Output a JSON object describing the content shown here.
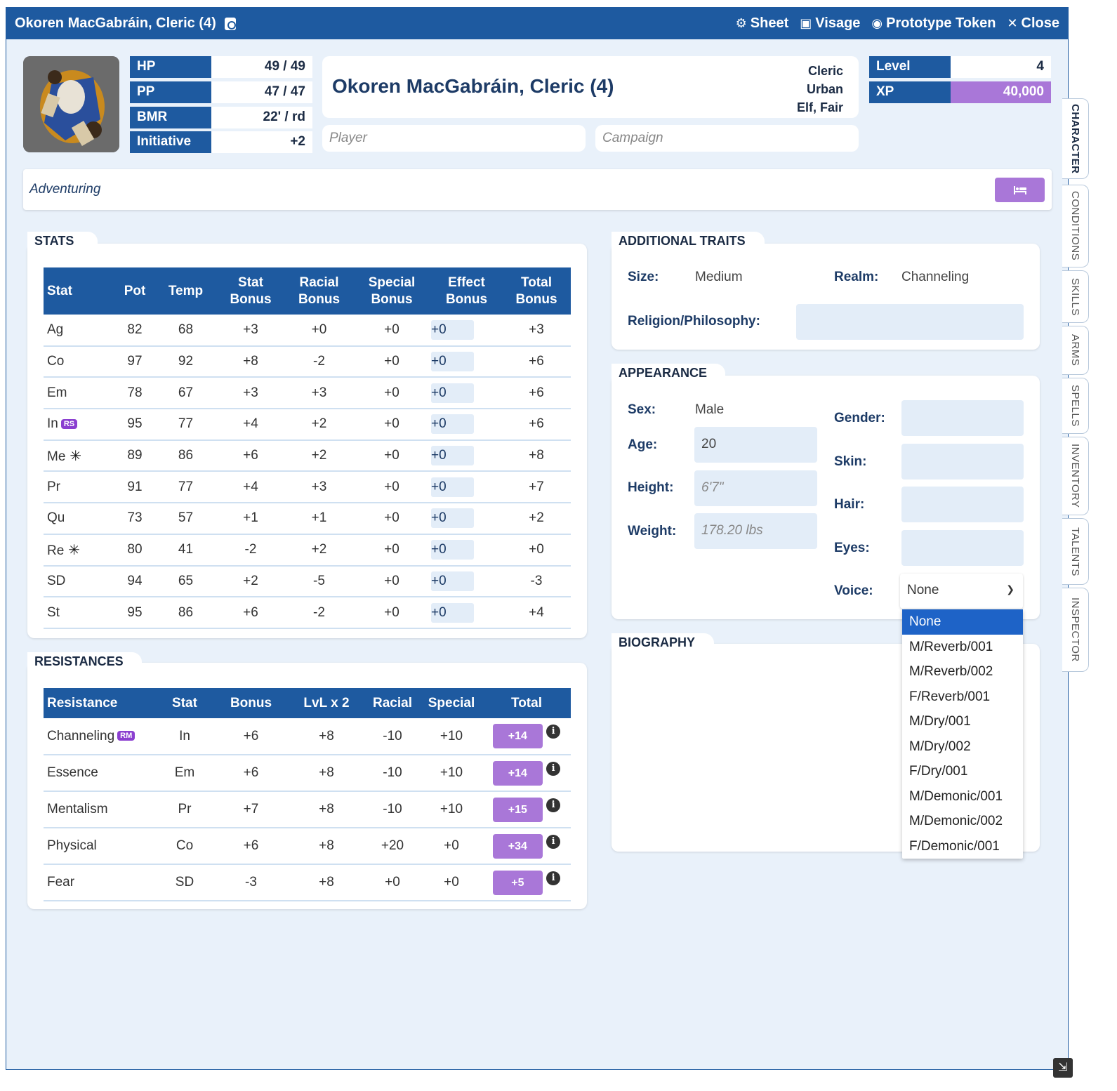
{
  "window": {
    "title": "Okoren MacGabráin, Cleric (4)",
    "actions": [
      {
        "label": "Sheet",
        "icon": "⚙"
      },
      {
        "label": "Visage",
        "icon": "▣"
      },
      {
        "label": "Prototype Token",
        "icon": "◉"
      },
      {
        "label": "Close",
        "icon": "✕"
      }
    ]
  },
  "vitals": [
    {
      "label": "HP",
      "value": "49  / 49"
    },
    {
      "label": "PP",
      "value": "47  / 47"
    },
    {
      "label": "BMR",
      "value": "22' / rd"
    },
    {
      "label": "Initiative",
      "value": "+2"
    }
  ],
  "header": {
    "name": "Okoren MacGabráin, Cleric (4)",
    "class": "Cleric",
    "culture": "Urban",
    "race": "Elf, Fair",
    "player_placeholder": "Player",
    "campaign_placeholder": "Campaign"
  },
  "progress": {
    "level_label": "Level",
    "level": "4",
    "xp_label": "XP",
    "xp": "40,000"
  },
  "adventure": {
    "status": "Adventuring",
    "rest_icon": "bed-icon"
  },
  "stats": {
    "heading": "STATS",
    "columns": [
      "Stat",
      "Pot",
      "Temp",
      "Stat Bonus",
      "Racial Bonus",
      "Special Bonus",
      "Effect Bonus",
      "Total Bonus"
    ],
    "rows": [
      {
        "stat": "Ag",
        "pot": "82",
        "temp": "68",
        "stat_bonus": "+3",
        "racial": "+0",
        "special": "+0",
        "effect": "+0",
        "total": "+3",
        "badge": "",
        "star": ""
      },
      {
        "stat": "Co",
        "pot": "97",
        "temp": "92",
        "stat_bonus": "+8",
        "racial": "-2",
        "special": "+0",
        "effect": "+0",
        "total": "+6",
        "badge": "",
        "star": ""
      },
      {
        "stat": "Em",
        "pot": "78",
        "temp": "67",
        "stat_bonus": "+3",
        "racial": "+3",
        "special": "+0",
        "effect": "+0",
        "total": "+6",
        "badge": "",
        "star": ""
      },
      {
        "stat": "In",
        "pot": "95",
        "temp": "77",
        "stat_bonus": "+4",
        "racial": "+2",
        "special": "+0",
        "effect": "+0",
        "total": "+6",
        "badge": "RS",
        "star": ""
      },
      {
        "stat": "Me",
        "pot": "89",
        "temp": "86",
        "stat_bonus": "+6",
        "racial": "+2",
        "special": "+0",
        "effect": "+0",
        "total": "+8",
        "badge": "",
        "star": "✳"
      },
      {
        "stat": "Pr",
        "pot": "91",
        "temp": "77",
        "stat_bonus": "+4",
        "racial": "+3",
        "special": "+0",
        "effect": "+0",
        "total": "+7",
        "badge": "",
        "star": ""
      },
      {
        "stat": "Qu",
        "pot": "73",
        "temp": "57",
        "stat_bonus": "+1",
        "racial": "+1",
        "special": "+0",
        "effect": "+0",
        "total": "+2",
        "badge": "",
        "star": ""
      },
      {
        "stat": "Re",
        "pot": "80",
        "temp": "41",
        "stat_bonus": "-2",
        "racial": "+2",
        "special": "+0",
        "effect": "+0",
        "total": "+0",
        "badge": "",
        "star": "✳"
      },
      {
        "stat": "SD",
        "pot": "94",
        "temp": "65",
        "stat_bonus": "+2",
        "racial": "-5",
        "special": "+0",
        "effect": "+0",
        "total": "-3",
        "badge": "",
        "star": ""
      },
      {
        "stat": "St",
        "pot": "95",
        "temp": "86",
        "stat_bonus": "+6",
        "racial": "-2",
        "special": "+0",
        "effect": "+0",
        "total": "+4",
        "badge": "",
        "star": ""
      }
    ]
  },
  "resistances": {
    "heading": "RESISTANCES",
    "columns": [
      "Resistance",
      "Stat",
      "Bonus",
      "LvL x 2",
      "Racial",
      "Special",
      "Total"
    ],
    "rows": [
      {
        "name": "Channeling",
        "badge": "RM",
        "stat": "In",
        "bonus": "+6",
        "lvl": "+8",
        "racial": "-10",
        "special": "+10",
        "total": "+14"
      },
      {
        "name": "Essence",
        "badge": "",
        "stat": "Em",
        "bonus": "+6",
        "lvl": "+8",
        "racial": "-10",
        "special": "+10",
        "total": "+14"
      },
      {
        "name": "Mentalism",
        "badge": "",
        "stat": "Pr",
        "bonus": "+7",
        "lvl": "+8",
        "racial": "-10",
        "special": "+10",
        "total": "+15"
      },
      {
        "name": "Physical",
        "badge": "",
        "stat": "Co",
        "bonus": "+6",
        "lvl": "+8",
        "racial": "+20",
        "special": "+0",
        "total": "+34"
      },
      {
        "name": "Fear",
        "badge": "",
        "stat": "SD",
        "bonus": "-3",
        "lvl": "+8",
        "racial": "+0",
        "special": "+0",
        "total": "+5"
      }
    ]
  },
  "traits": {
    "heading": "ADDITIONAL TRAITS",
    "size_label": "Size:",
    "size": "Medium",
    "realm_label": "Realm:",
    "realm": "Channeling",
    "religion_label": "Religion/Philosophy:",
    "religion": ""
  },
  "appearance": {
    "heading": "APPEARANCE",
    "sex_label": "Sex:",
    "sex": "Male",
    "age_label": "Age:",
    "age": "20",
    "height_label": "Height:",
    "height": "6'7\"",
    "weight_label": "Weight:",
    "weight": "178.20 lbs",
    "gender_label": "Gender:",
    "skin_label": "Skin:",
    "hair_label": "Hair:",
    "eyes_label": "Eyes:",
    "voice_label": "Voice:",
    "voice": "None",
    "voice_options": [
      "None",
      "M/Reverb/001",
      "M/Reverb/002",
      "F/Reverb/001",
      "M/Dry/001",
      "M/Dry/002",
      "F/Dry/001",
      "M/Demonic/001",
      "M/Demonic/002",
      "F/Demonic/001"
    ]
  },
  "biography": {
    "heading": "BIOGRAPHY"
  },
  "side_tabs": [
    "CHARACTER",
    "CONDITIONS",
    "SKILLS",
    "ARMS",
    "SPELLS",
    "INVENTORY",
    "TALENTS",
    "INSPECTOR"
  ],
  "colors": {
    "primary": "#1e5aa0",
    "accent": "#a977d8",
    "background": "#e9f1fa",
    "selected": "#1e63c7"
  }
}
